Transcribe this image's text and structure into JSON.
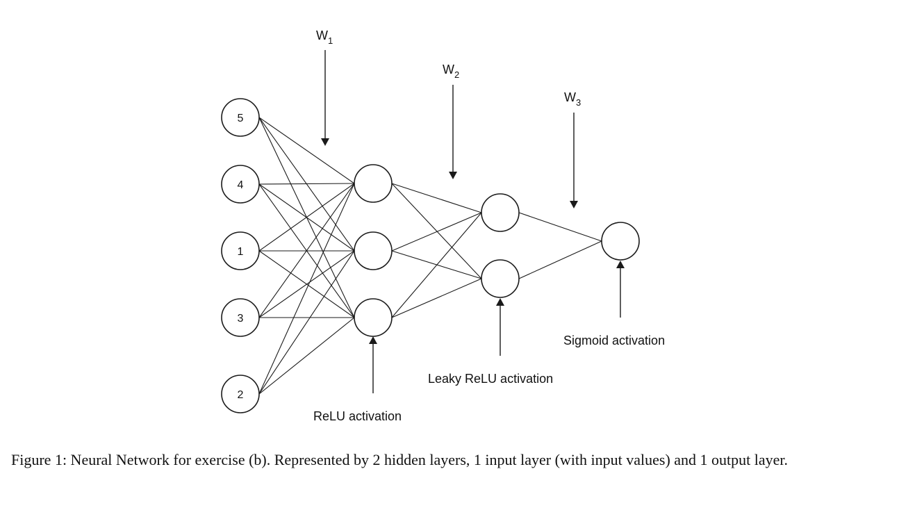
{
  "diagram": {
    "input_nodes": [
      "5",
      "4",
      "1",
      "3",
      "2"
    ],
    "hidden1_count": 3,
    "hidden2_count": 2,
    "output_count": 1,
    "weights": [
      {
        "main": "W",
        "sub": "1"
      },
      {
        "main": "W",
        "sub": "2"
      },
      {
        "main": "W",
        "sub": "3"
      }
    ],
    "activations": {
      "hidden1": "ReLU activation",
      "hidden2": "Leaky ReLU activation",
      "output": "Sigmoid activation"
    }
  },
  "caption": "Figure 1: Neural Network for exercise (b). Represented by 2 hidden layers, 1 input layer (with input values) and 1 output layer."
}
